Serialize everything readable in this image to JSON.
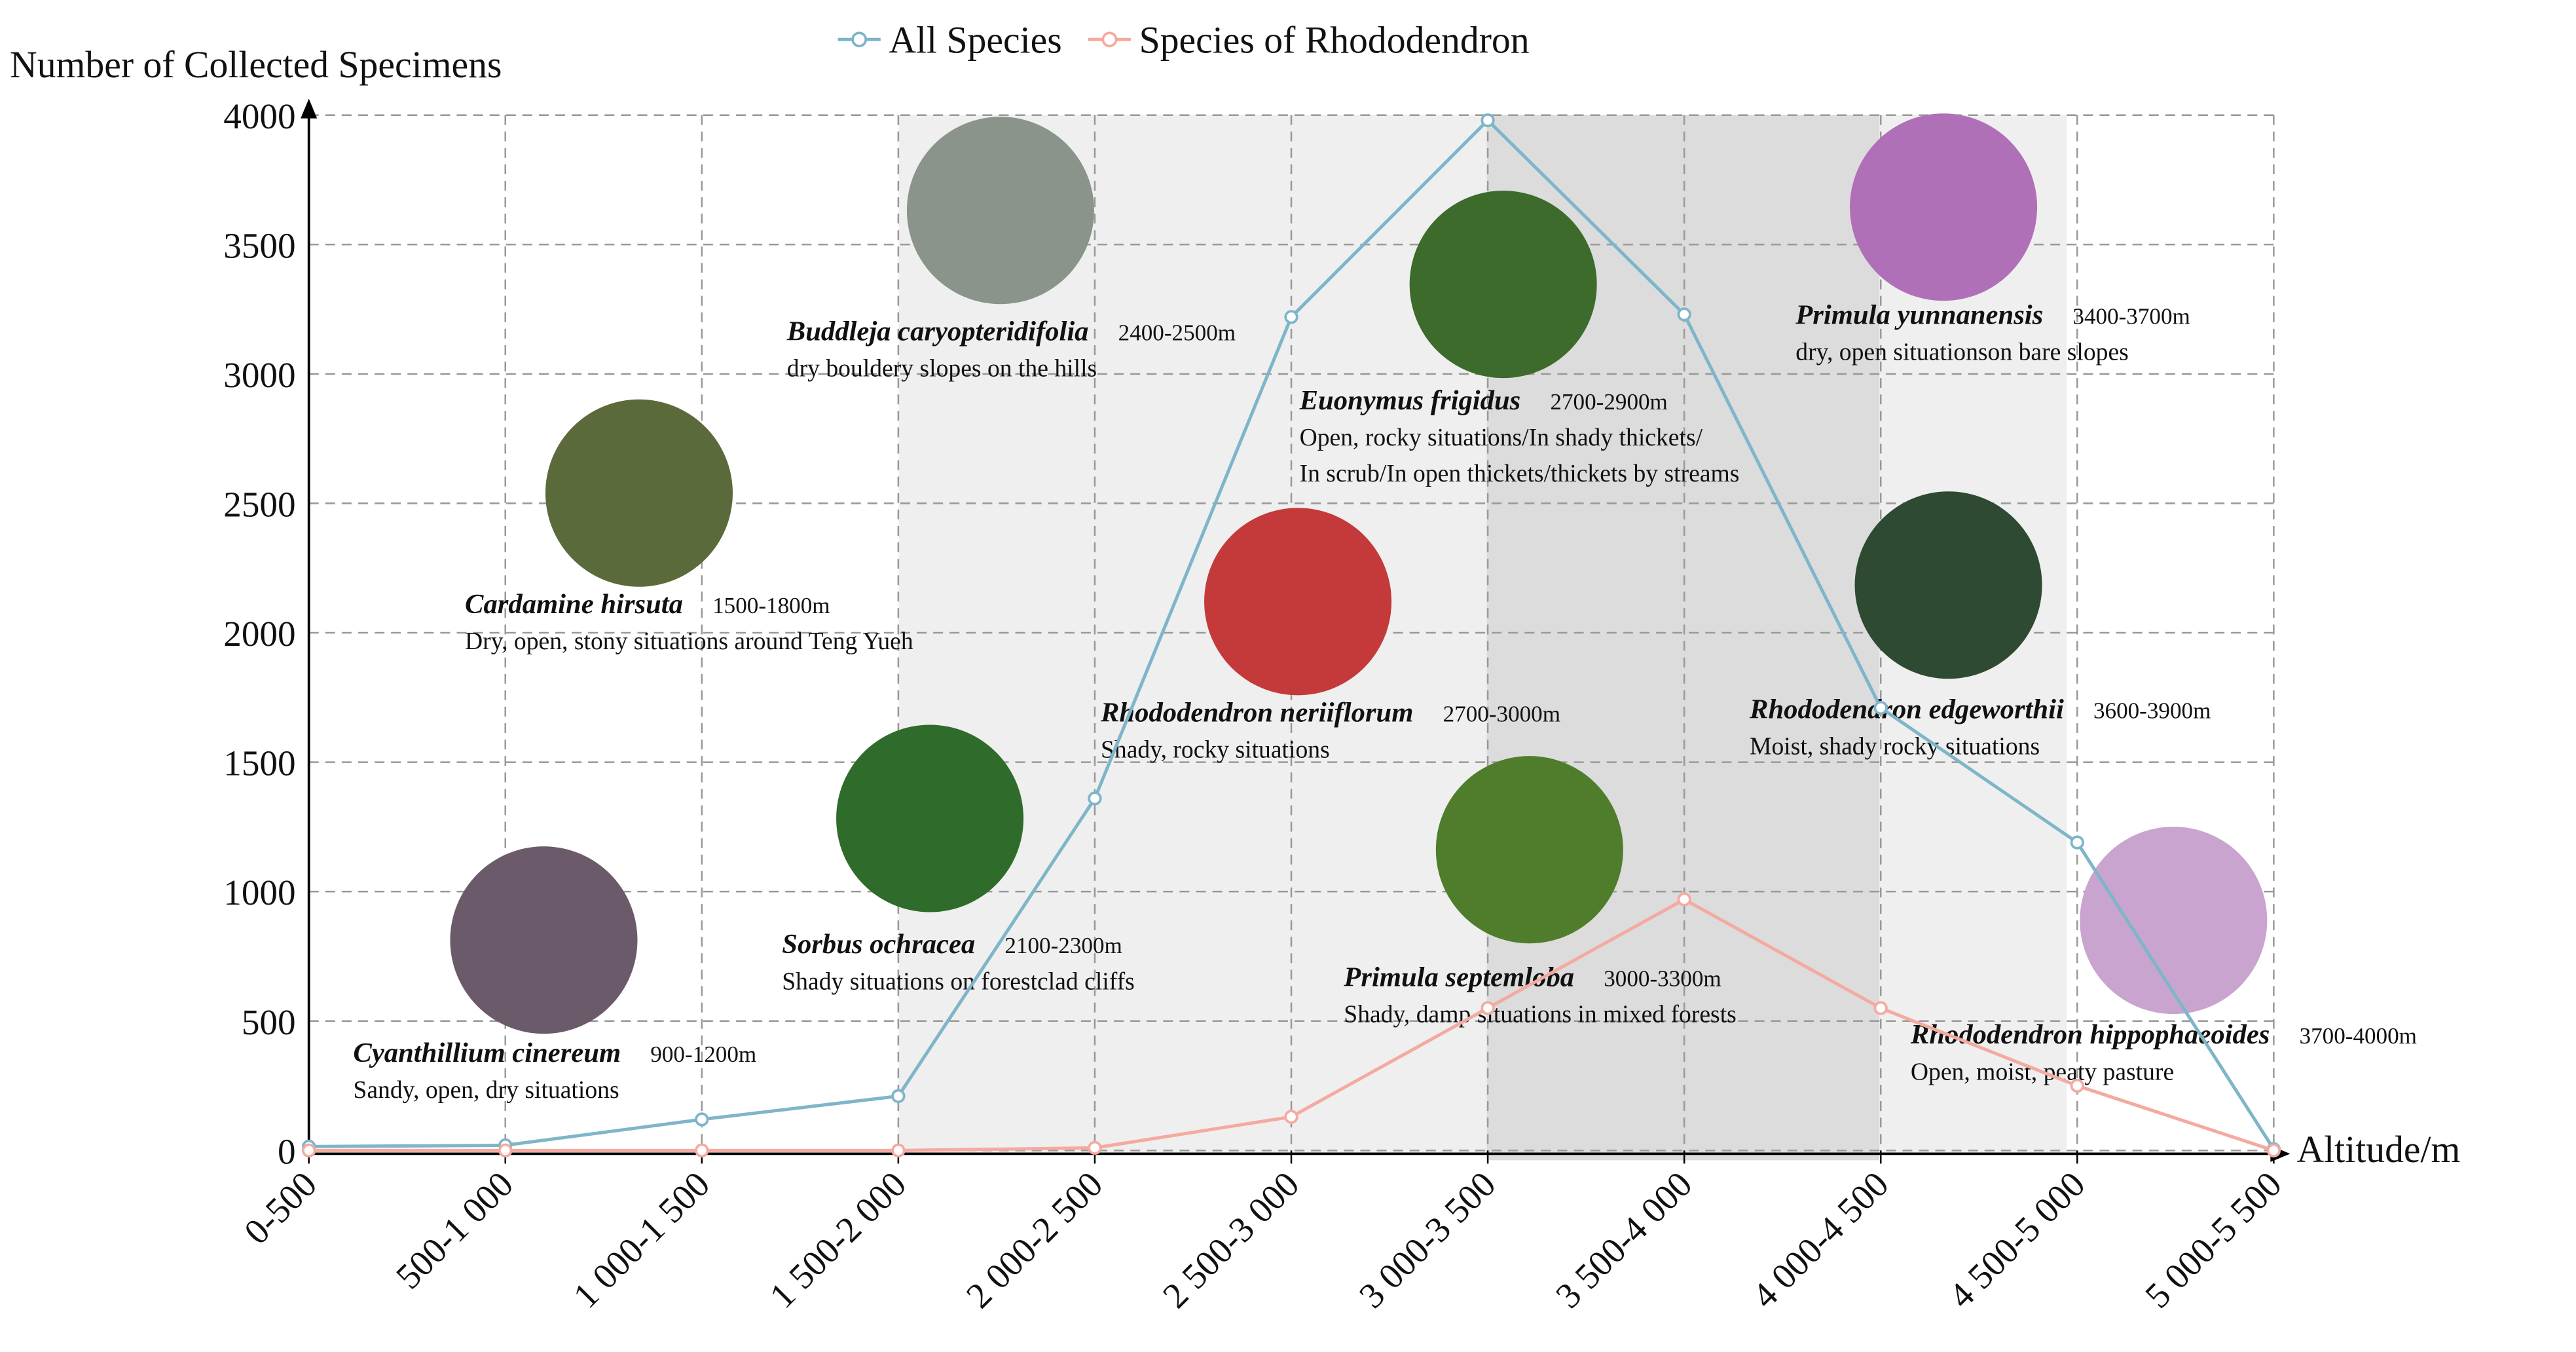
{
  "chart_data": {
    "type": "line",
    "y_label": "Number of Collected Specimens",
    "x_label": "Altitude/m",
    "categories": [
      "0-500",
      "500-1 000",
      "1 000-1 500",
      "1 500-2 000",
      "2 000-2 500",
      "2 500-3 000",
      "3 000-3 500",
      "3 500-4 000",
      "4 000-4 500",
      "4 500-5 000",
      "5 000-5 500"
    ],
    "series": [
      {
        "name": "All Species",
        "color": "#7fb5c9",
        "values": [
          15,
          20,
          120,
          210,
          1360,
          3220,
          3980,
          3230,
          1710,
          1190,
          5
        ]
      },
      {
        "name": "Species of Rhododendron",
        "color": "#f4aaa0",
        "values": [
          0,
          0,
          0,
          0,
          10,
          130,
          550,
          970,
          550,
          250,
          0
        ]
      }
    ],
    "ylim": [
      0,
      4000
    ],
    "yticks": [
      0,
      500,
      1000,
      1500,
      2000,
      2500,
      3000,
      3500,
      4000
    ],
    "grid": true,
    "legend": "top",
    "annotations": [
      {
        "name": "Cyanthillium cinereum",
        "range": "900-1200m",
        "habitat": [
          "Sandy, open, dry situations"
        ]
      },
      {
        "name": "Sorbus ochracea",
        "range": "2100-2300m",
        "habitat": [
          "Shady situations on forestclad cliffs"
        ]
      },
      {
        "name": "Cardamine hirsuta",
        "range": "1500-1800m",
        "habitat": [
          "Dry, open, stony situations around Teng Yueh"
        ]
      },
      {
        "name": "Buddleja caryopteridifolia",
        "range": "2400-2500m",
        "habitat": [
          "dry bouldery slopes on the hills"
        ]
      },
      {
        "name": "Rhododendron neriiflorum",
        "range": "2700-3000m",
        "habitat": [
          "Shady, rocky situations"
        ]
      },
      {
        "name": "Euonymus frigidus",
        "range": "2700-2900m",
        "habitat": [
          "Open, rocky situations/In shady thickets/",
          "In scrub/In open thickets/thickets by streams"
        ]
      },
      {
        "name": "Primula septemloba",
        "range": "3000-3300m",
        "habitat": [
          "Shady, damp situations in mixed forests"
        ]
      },
      {
        "name": "Primula yunnanensis",
        "range": "3400-3700m",
        "habitat": [
          "dry, open situationson bare slopes"
        ]
      },
      {
        "name": "Rhododendron edgeworthii",
        "range": "3600-3900m",
        "habitat": [
          "Moist, shady rocky situations"
        ]
      },
      {
        "name": "Rhododendron hippophaeoides",
        "range": "3700-4000m",
        "habitat": [
          "Open, moist, peaty pasture"
        ]
      }
    ]
  }
}
